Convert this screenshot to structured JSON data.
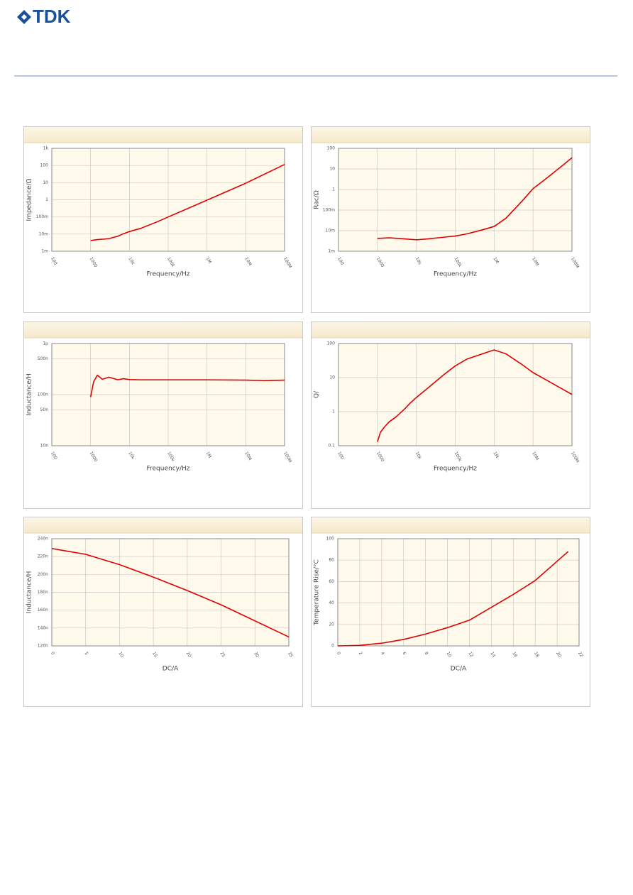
{
  "logo": "TDK",
  "chart_data": [
    {
      "type": "line",
      "xlabel": "Frequency/Hz",
      "ylabel": "Impedance/Ω",
      "xscale": "log",
      "yscale": "log",
      "grid": true,
      "color": "#e00000",
      "xlim": [
        100,
        100000000
      ],
      "xticks": [
        100,
        1000,
        {
          "value": 10000,
          "label": "10k"
        },
        {
          "value": 100000,
          "label": "100k"
        },
        {
          "value": 1000000,
          "label": "1M"
        },
        {
          "value": 10000000,
          "label": "10M"
        },
        {
          "value": 100000000,
          "label": "100M"
        }
      ],
      "ylim": [
        0.001,
        1000
      ],
      "yticks": [
        {
          "value": 0.001,
          "label": "1m"
        },
        {
          "value": 0.01,
          "label": "10m"
        },
        {
          "value": 0.1,
          "label": "100m"
        },
        1,
        10,
        100,
        {
          "value": 1000,
          "label": "1k"
        }
      ],
      "x": [
        1000,
        1500,
        2000,
        3000,
        5000,
        7000,
        10000,
        20000,
        50000,
        100000,
        1000000,
        10000000,
        100000000
      ],
      "values": [
        0.0042,
        0.0048,
        0.005,
        0.0055,
        0.0075,
        0.0105,
        0.014,
        0.022,
        0.05,
        0.1,
        0.95,
        9.3,
        115
      ]
    },
    {
      "type": "line",
      "xlabel": "Frequency/Hz",
      "ylabel": "Rac/Ω",
      "xscale": "log",
      "yscale": "log",
      "grid": true,
      "color": "#e00000",
      "xlim": [
        100,
        100000000
      ],
      "xticks": [
        100,
        1000,
        {
          "value": 10000,
          "label": "10k"
        },
        {
          "value": 100000,
          "label": "100k"
        },
        {
          "value": 1000000,
          "label": "1M"
        },
        {
          "value": 10000000,
          "label": "10M"
        },
        {
          "value": 100000000,
          "label": "100M"
        }
      ],
      "ylim": [
        0.001,
        100
      ],
      "yticks": [
        {
          "value": 0.001,
          "label": "1m"
        },
        {
          "value": 0.01,
          "label": "10m"
        },
        {
          "value": 0.1,
          "label": "100m"
        },
        1,
        10,
        100
      ],
      "x": [
        1000,
        2000,
        5000,
        10000,
        20000,
        50000,
        100000,
        200000,
        500000,
        1000000,
        2000000,
        5000000,
        10000000,
        20000000,
        50000000,
        100000000
      ],
      "values": [
        0.0042,
        0.0045,
        0.004,
        0.0036,
        0.004,
        0.0048,
        0.0055,
        0.007,
        0.011,
        0.016,
        0.04,
        0.25,
        1.1,
        3,
        12,
        35
      ]
    },
    {
      "type": "line",
      "xlabel": "Frequency/Hz",
      "ylabel": "Inductance/H",
      "xscale": "log",
      "yscale": "log",
      "grid": true,
      "color": "#e00000",
      "xlim": [
        100,
        100000000
      ],
      "xticks": [
        100,
        1000,
        {
          "value": 10000,
          "label": "10k"
        },
        {
          "value": 100000,
          "label": "100k"
        },
        {
          "value": 1000000,
          "label": "1M"
        },
        {
          "value": 10000000,
          "label": "10M"
        },
        {
          "value": 100000000,
          "label": "100M"
        }
      ],
      "ylim": [
        1e-08,
        1e-06
      ],
      "yticks": [
        {
          "value": 1e-08,
          "label": "10n"
        },
        {
          "value": 5e-08,
          "label": "50n"
        },
        {
          "value": 1e-07,
          "label": "100n"
        },
        {
          "value": 5e-07,
          "label": "500n"
        },
        {
          "value": 1e-06,
          "label": "1µ"
        }
      ],
      "x": [
        1000,
        1200,
        1500,
        2000,
        3000,
        5000,
        7000,
        10000,
        20000,
        100000,
        1000000,
        10000000,
        30000000,
        100000000
      ],
      "values": [
        9e-08,
        1.8e-07,
        2.4e-07,
        2e-07,
        2.2e-07,
        1.95e-07,
        2.05e-07,
        1.97e-07,
        1.95e-07,
        1.95e-07,
        1.95e-07,
        1.92e-07,
        1.88e-07,
        1.92e-07
      ]
    },
    {
      "type": "line",
      "xlabel": "Frequency/Hz",
      "ylabel": "Q/",
      "xscale": "log",
      "yscale": "log",
      "grid": true,
      "color": "#e00000",
      "xlim": [
        100,
        100000000
      ],
      "xticks": [
        100,
        1000,
        {
          "value": 10000,
          "label": "10k"
        },
        {
          "value": 100000,
          "label": "100k"
        },
        {
          "value": 1000000,
          "label": "1M"
        },
        {
          "value": 10000000,
          "label": "10M"
        },
        {
          "value": 100000000,
          "label": "100M"
        }
      ],
      "ylim": [
        0.1,
        100
      ],
      "yticks": [
        0.1,
        1,
        10,
        100
      ],
      "x": [
        1000,
        1200,
        1500,
        2000,
        3000,
        5000,
        7000,
        10000,
        20000,
        50000,
        100000,
        200000,
        500000,
        1000000,
        2000000,
        5000000,
        10000000,
        20000000,
        50000000,
        100000000
      ],
      "values": [
        0.13,
        0.25,
        0.35,
        0.5,
        0.7,
        1.2,
        1.8,
        2.6,
        5,
        12,
        22,
        35,
        50,
        65,
        50,
        25,
        14,
        9,
        5,
        3.2
      ]
    },
    {
      "type": "line",
      "xlabel": "DC/A",
      "ylabel": "Inductance/H",
      "grid": true,
      "color": "#e00000",
      "xlim": [
        0,
        35
      ],
      "xticks": [
        0,
        5,
        10,
        15,
        20,
        25,
        30,
        35
      ],
      "ylim": [
        1.2e-07,
        2.4e-07
      ],
      "yticks": [
        {
          "value": 1.2e-07,
          "label": "120n"
        },
        {
          "value": 1.4e-07,
          "label": "140n"
        },
        {
          "value": 1.6e-07,
          "label": "160n"
        },
        {
          "value": 1.8e-07,
          "label": "180n"
        },
        {
          "value": 2e-07,
          "label": "200n"
        },
        {
          "value": 2.2e-07,
          "label": "220n"
        },
        {
          "value": 2.4e-07,
          "label": "240n"
        }
      ],
      "x": [
        0,
        5,
        10,
        15,
        20,
        25,
        30,
        35
      ],
      "values": [
        2.29e-07,
        2.225e-07,
        2.11e-07,
        1.97e-07,
        1.82e-07,
        1.66e-07,
        1.48e-07,
        1.3e-07
      ]
    },
    {
      "type": "line",
      "xlabel": "DC/A",
      "ylabel": "Temperature Rise/°C",
      "grid": true,
      "color": "#e00000",
      "xlim": [
        0,
        22
      ],
      "xticks": [
        0,
        2,
        4,
        6,
        8,
        10,
        12,
        14,
        16,
        18,
        20,
        22
      ],
      "ylim": [
        0,
        100
      ],
      "yticks": [
        0,
        20,
        40,
        60,
        80,
        100
      ],
      "x": [
        0,
        2,
        4,
        6,
        8,
        10,
        12,
        14,
        16,
        18,
        20,
        21
      ],
      "values": [
        0,
        0.5,
        2.5,
        6,
        11,
        17,
        24,
        36,
        48,
        61,
        79,
        88
      ]
    }
  ]
}
